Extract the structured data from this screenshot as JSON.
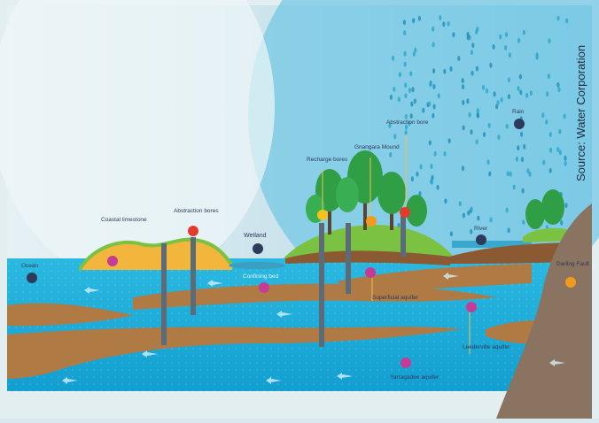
{
  "source_credit": "Source: Water Corporation",
  "labels": {
    "ocean": "Ocean",
    "coastal_limestone": "Coastal limestone",
    "abstraction_bores_left": "Abstraction bores",
    "wetland": "Wetland",
    "confining_bed": "Confining bed",
    "recharge_bores": "Recharge bores",
    "gnangara_mound": "Gnangara Mound",
    "abstraction_bore_right": "Abstraction bore",
    "rain": "Rain",
    "river": "River",
    "superficial_aquifer": "Superficial aquifer",
    "leederville_aquifer": "Leederville aquifer",
    "yarragadee_aquifer": "Yarragadee aquifer",
    "darling_fault": "Darling Fault"
  },
  "colors": {
    "sky_left": "#d7eaf0",
    "sky_right": "#6cc3e4",
    "water": "#1fb0dc",
    "clay": "#b07a45",
    "sand": "#f2b63c",
    "grass": "#7cc242",
    "tree": "#2f9e45",
    "rock": "#8a7360",
    "bore": "#5c6b78",
    "marker_dark": "#2d3a5a",
    "marker_pink": "#c43c96",
    "marker_yellow": "#f5c21a",
    "marker_red": "#e23b2e",
    "marker_orange": "#f39a1e"
  }
}
